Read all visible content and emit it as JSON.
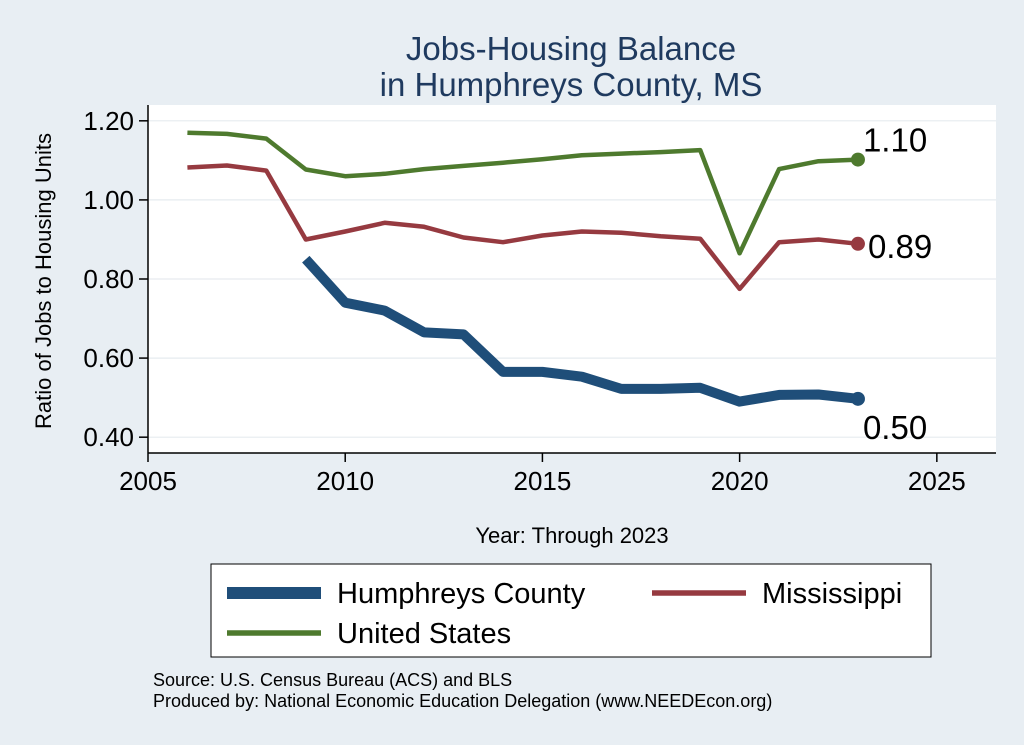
{
  "chart_data": {
    "type": "line",
    "title": [
      "Jobs-Housing Balance",
      "in Humphreys County, MS"
    ],
    "xlabel": "Year: Through 2023",
    "ylabel": "Ratio of Jobs to Housing Units",
    "xlim": [
      2005,
      2026.5
    ],
    "ylim": [
      0.36,
      1.24
    ],
    "xticks": [
      2005,
      2010,
      2015,
      2020,
      2025
    ],
    "yticks": [
      0.4,
      0.6,
      0.8,
      1.0,
      1.2
    ],
    "ytick_labels": [
      "0.40",
      "0.60",
      "0.80",
      "1.00",
      "1.20"
    ],
    "grid": true,
    "legend_position": "bottom",
    "series": [
      {
        "name": "Humphreys County",
        "color": "#1f4e79",
        "x": [
          2009,
          2010,
          2011,
          2012,
          2013,
          2014,
          2015,
          2016,
          2017,
          2018,
          2019,
          2020,
          2021,
          2022,
          2023
        ],
        "values": [
          0.85,
          0.74,
          0.72,
          0.665,
          0.66,
          0.565,
          0.565,
          0.553,
          0.522,
          0.522,
          0.525,
          0.49,
          0.507,
          0.508,
          0.497
        ],
        "end_label": "0.50"
      },
      {
        "name": "Mississippi",
        "color": "#963a40",
        "x": [
          2006,
          2007,
          2008,
          2009,
          2010,
          2011,
          2012,
          2013,
          2014,
          2015,
          2016,
          2017,
          2018,
          2019,
          2020,
          2021,
          2022,
          2023
        ],
        "values": [
          1.082,
          1.087,
          1.074,
          0.9,
          0.92,
          0.942,
          0.932,
          0.905,
          0.893,
          0.91,
          0.92,
          0.917,
          0.908,
          0.902,
          0.775,
          0.893,
          0.9,
          0.889
        ],
        "end_label": "0.89"
      },
      {
        "name": "United States",
        "color": "#4e7a2e",
        "x": [
          2006,
          2007,
          2008,
          2009,
          2010,
          2011,
          2012,
          2013,
          2014,
          2015,
          2016,
          2017,
          2018,
          2019,
          2020,
          2021,
          2022,
          2023
        ],
        "values": [
          1.17,
          1.167,
          1.155,
          1.077,
          1.06,
          1.066,
          1.078,
          1.086,
          1.094,
          1.103,
          1.113,
          1.117,
          1.121,
          1.126,
          0.865,
          1.078,
          1.098,
          1.102
        ],
        "end_label": "1.10"
      }
    ],
    "notes": [
      "Source: U.S. Census Bureau (ACS) and BLS",
      "Produced by: National Economic Education Delegation (www.NEEDEcon.org)"
    ]
  }
}
